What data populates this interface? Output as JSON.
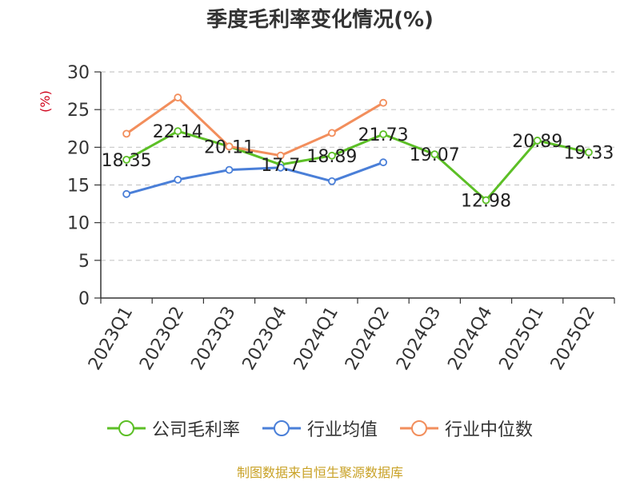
{
  "title": "季度毛利率变化情况(%)",
  "source": "制图数据来自恒生聚源数据库",
  "chart_data": {
    "type": "line",
    "title": "季度毛利率变化情况(%)",
    "ylabel": "(%)",
    "ylim": [
      0,
      30
    ],
    "yticks": [
      0,
      5,
      10,
      15,
      20,
      25,
      30
    ],
    "grid": true,
    "legend_position": "bottom",
    "categories": [
      "2023Q1",
      "2023Q2",
      "2023Q3",
      "2023Q4",
      "2024Q1",
      "2024Q2",
      "2024Q3",
      "2024Q4",
      "2025Q1",
      "2025Q2"
    ],
    "series": [
      {
        "name": "公司毛利率",
        "color": "#5cbf26",
        "values": [
          18.35,
          22.14,
          20.11,
          17.7,
          18.89,
          21.73,
          19.07,
          12.98,
          20.89,
          19.33
        ],
        "labels": [
          "18.35",
          "22.14",
          "20.11",
          "17.7",
          "18.89",
          "21.73",
          "19.07",
          "12.98",
          "20.89",
          "19.33"
        ]
      },
      {
        "name": "行业均值",
        "color": "#4a7fd8",
        "values": [
          13.8,
          15.7,
          17.0,
          17.3,
          15.5,
          18.0,
          null,
          null,
          null,
          null
        ]
      },
      {
        "name": "行业中位数",
        "color": "#f28e5c",
        "values": [
          21.8,
          26.6,
          20.1,
          18.9,
          21.9,
          25.9,
          null,
          null,
          null,
          null
        ]
      }
    ]
  }
}
